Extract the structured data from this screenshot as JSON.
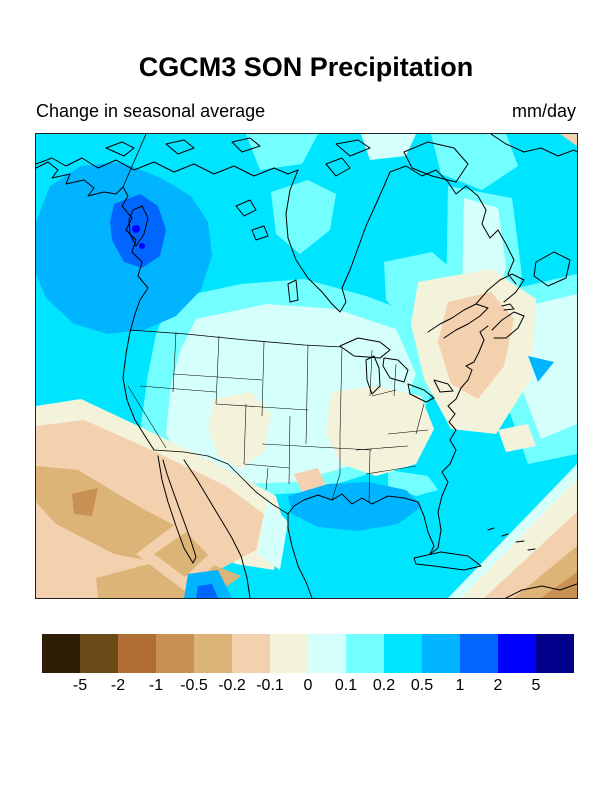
{
  "header": {
    "title": "CGCM3 SON Precipitation",
    "subtitle_left": "Change in seasonal average",
    "units_label": "mm/day"
  },
  "chart_data": {
    "type": "heatmap",
    "title": "CGCM3 SON Precipitation",
    "subtitle": "Change in seasonal average",
    "units": "mm/day",
    "geography": "Filled contour map of North America (Alaska, Canada, United States, Mexico, Caribbean) with black coastlines, US state borders and Great Lakes outlines",
    "colorbar": {
      "orientation": "horizontal",
      "tick_labels": [
        "-5",
        "-2",
        "-1",
        "-0.5",
        "-0.2",
        "-0.1",
        "0",
        "0.1",
        "0.2",
        "0.5",
        "1",
        "2",
        "5"
      ],
      "levels": [
        -5,
        -2,
        -1,
        -0.5,
        -0.2,
        -0.1,
        0,
        0.1,
        0.2,
        0.5,
        1,
        2,
        5
      ],
      "colors": [
        "#2E1E07",
        "#6B4A17",
        "#B06E35",
        "#C89052",
        "#DDB477",
        "#F3D0AE",
        "#F3F2DB",
        "#D5FFFA",
        "#73FFFF",
        "#00E5FF",
        "#00B4FF",
        "#0066FF",
        "#0000FF",
        "#00008B"
      ],
      "bin_meanings_mm_day": [
        "< -5",
        "-5 to -2",
        "-2 to -1",
        "-1 to -0.5",
        "-0.5 to -0.2",
        "-0.2 to -0.1",
        "-0.1 to 0",
        "0 to 0.1",
        "0.1 to 0.2",
        "0.2 to 0.5",
        "0.5 to 1",
        "1 to 2",
        "2 to 5",
        "> 5"
      ]
    },
    "features": [
      {
        "region": "British Columbia / Pacific Northwest coast",
        "value_mm_day": "+1 to +2 (small spots +2 to +5)"
      },
      {
        "region": "Large halo around BC blob and most oceans/Canada",
        "value_mm_day": "+0.2 to +0.5"
      },
      {
        "region": "Gulf of Mexico blob",
        "value_mm_day": "+0.5 to +1"
      },
      {
        "region": "Central / western United States interior",
        "value_mm_day": "0 to +0.2"
      },
      {
        "region": "Colorado-Utah patch and Kentucky-Tennessee patch",
        "value_mm_day": "-0.1 to 0"
      },
      {
        "region": "Nova Scotia / Gulf of St. Lawrence patch",
        "value_mm_day": "-0.2 to -0.1"
      },
      {
        "region": "Subtropical eastern Pacific (southwest corner) bands",
        "value_mm_day": "-0.5 to -0.2 with cores -1 to -0.5"
      },
      {
        "region": "Caribbean bottom-right corner bands",
        "value_mm_day": "-0.5 to -2 toward corner"
      },
      {
        "region": "Southern Mexico bottom strip",
        "value_mm_day": "-0.5 to -0.2"
      }
    ]
  }
}
